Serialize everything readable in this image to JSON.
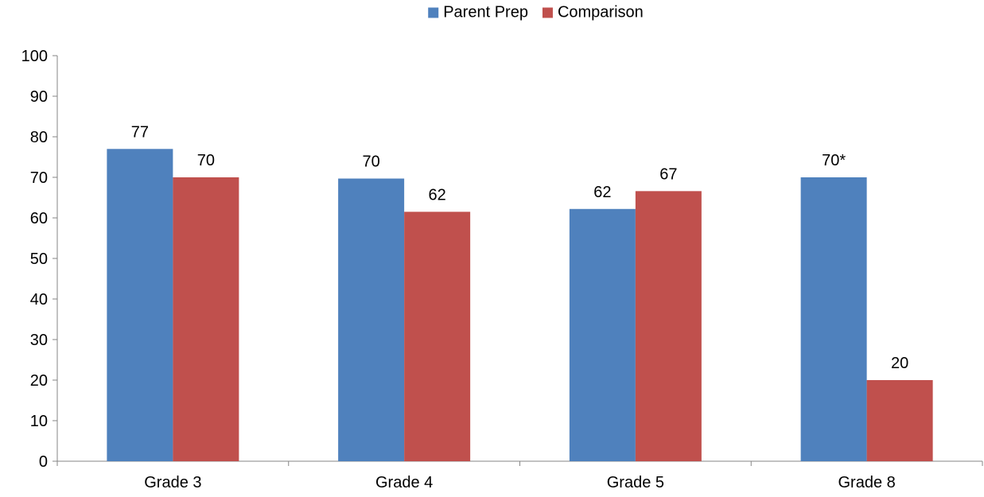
{
  "chart_data": {
    "type": "bar",
    "categories": [
      "Grade 3",
      "Grade 4",
      "Grade 5",
      "Grade 8"
    ],
    "series": [
      {
        "name": "Parent Prep",
        "color": "#4F81BD",
        "values": [
          77,
          69.7,
          62.2,
          70
        ],
        "labels": [
          "77",
          "70",
          "62",
          "70*"
        ]
      },
      {
        "name": "Comparison",
        "color": "#C0504D",
        "values": [
          70,
          61.5,
          66.6,
          20
        ],
        "labels": [
          "70",
          "62",
          "67",
          "20"
        ]
      }
    ],
    "ylim": [
      0,
      100
    ],
    "yticks": [
      0,
      10,
      20,
      30,
      40,
      50,
      60,
      70,
      80,
      90,
      100
    ],
    "ytick_labels": [
      "0",
      "10",
      "20",
      "30",
      "40",
      "50",
      "60",
      "70",
      "80",
      "90",
      "100"
    ],
    "legend_position": "top-center",
    "grid": false,
    "title": "",
    "xlabel": "",
    "ylabel": ""
  }
}
